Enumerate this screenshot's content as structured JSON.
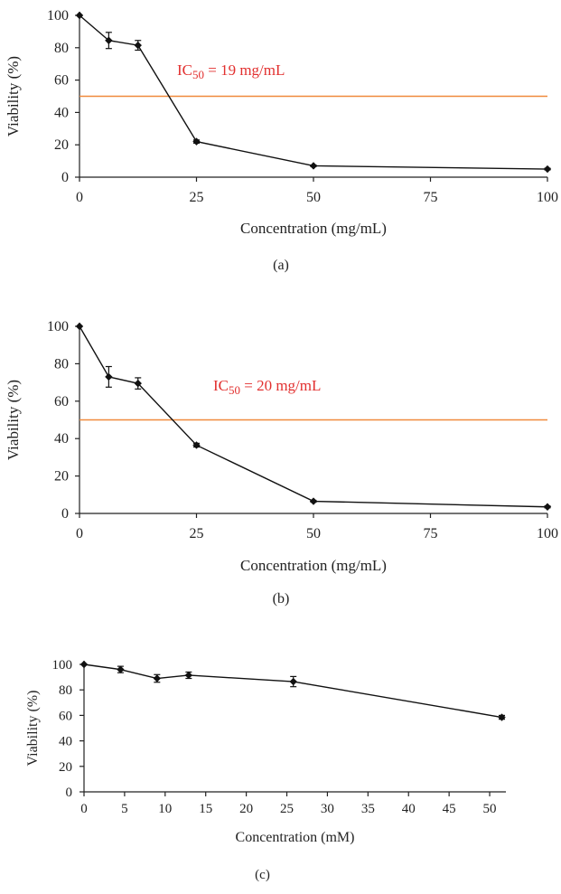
{
  "chart_data": [
    {
      "type": "line",
      "panel_label": "(a)",
      "xlabel": "Concentration (mg/mL)",
      "ylabel": "Viability (%)",
      "xlim": [
        0,
        100
      ],
      "ylim": [
        0,
        100
      ],
      "xticks": [
        0,
        25,
        50,
        75,
        100
      ],
      "yticks": [
        0,
        20,
        40,
        60,
        80,
        100
      ],
      "grid": false,
      "series": [
        {
          "color": "#111111",
          "marker": "diamond",
          "x": [
            0,
            6.25,
            12.5,
            25,
            50,
            100
          ],
          "y": [
            100,
            84.5,
            81.5,
            22,
            7,
            5
          ],
          "error": [
            0,
            5,
            3,
            1,
            0.5,
            0.5
          ]
        }
      ],
      "reference_line": {
        "y": 50,
        "color": "#f08a3c"
      },
      "annotation": {
        "prefix": "IC",
        "subscript": "50",
        "suffix": " = 19 mg/mL",
        "color": "#e2302f"
      }
    },
    {
      "type": "line",
      "panel_label": "(b)",
      "xlabel": "Concentration (mg/mL)",
      "ylabel": "Viability (%)",
      "xlim": [
        0,
        100
      ],
      "ylim": [
        0,
        100
      ],
      "xticks": [
        0,
        25,
        50,
        75,
        100
      ],
      "yticks": [
        0,
        20,
        40,
        60,
        80,
        100
      ],
      "grid": false,
      "series": [
        {
          "color": "#111111",
          "marker": "diamond",
          "x": [
            0,
            6.25,
            12.5,
            25,
            50,
            100
          ],
          "y": [
            100,
            73,
            69.5,
            36.5,
            6.5,
            3.5
          ],
          "error": [
            0,
            5.5,
            3,
            1,
            0.5,
            0.5
          ]
        }
      ],
      "reference_line": {
        "y": 50,
        "color": "#f08a3c"
      },
      "annotation": {
        "prefix": "IC",
        "subscript": "50",
        "suffix": " = 20 mg/mL",
        "color": "#e2302f"
      }
    },
    {
      "type": "line",
      "panel_label": "(c)",
      "xlabel": "Concentration (mM)",
      "ylabel": "Viability (%)",
      "xlim": [
        0,
        52
      ],
      "ylim": [
        0,
        100
      ],
      "xticks": [
        0,
        5,
        10,
        15,
        20,
        25,
        30,
        35,
        40,
        45,
        50
      ],
      "yticks": [
        0,
        20,
        40,
        60,
        80,
        100
      ],
      "grid": false,
      "series": [
        {
          "color": "#111111",
          "marker": "diamond",
          "x": [
            0,
            4.5,
            9,
            12.9,
            25.8,
            51.5
          ],
          "y": [
            100,
            96,
            89,
            91.5,
            86.5,
            58.5
          ],
          "error": [
            0,
            2.5,
            3,
            2.5,
            4,
            1.5
          ]
        }
      ]
    }
  ]
}
